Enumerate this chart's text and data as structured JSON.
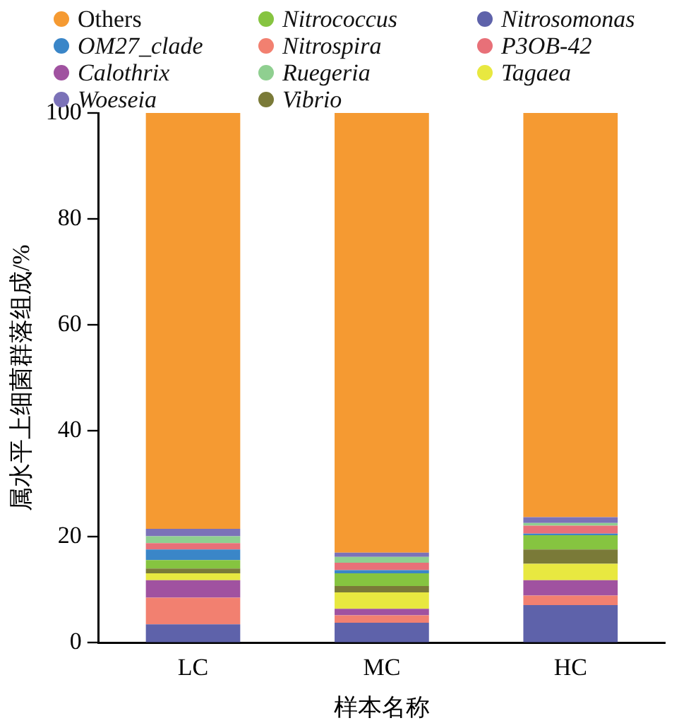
{
  "chart_data": {
    "type": "bar",
    "stacked": true,
    "xlabel": "样本名称",
    "ylabel": "属水平上细菌群落组成/%",
    "categories": [
      "LC",
      "MC",
      "HC"
    ],
    "ylim": [
      0,
      100
    ],
    "yticks": [
      0,
      20,
      40,
      60,
      80,
      100
    ],
    "grid": false,
    "legend": "top",
    "series": [
      {
        "name": "Nitrosomonas",
        "color": "#5e62aa",
        "values": [
          3.5,
          3.8,
          7.1
        ]
      },
      {
        "name": "Nitrospira",
        "color": "#f28070",
        "values": [
          5.0,
          1.4,
          1.8
        ]
      },
      {
        "name": "Calothrix",
        "color": "#a052a0",
        "values": [
          3.3,
          1.2,
          2.9
        ]
      },
      {
        "name": "Tagaea",
        "color": "#e8e840",
        "values": [
          1.3,
          3.1,
          3.1
        ]
      },
      {
        "name": "Vibrio",
        "color": "#7a7a38",
        "values": [
          0.9,
          1.2,
          2.7
        ]
      },
      {
        "name": "Nitrococcus",
        "color": "#86c440",
        "values": [
          1.6,
          2.4,
          2.7
        ]
      },
      {
        "name": "OM27_clade",
        "color": "#3a86c8",
        "values": [
          2.0,
          0.6,
          0.3
        ]
      },
      {
        "name": "P3OB-42",
        "color": "#e87078",
        "values": [
          1.2,
          1.4,
          1.5
        ]
      },
      {
        "name": "Ruegeria",
        "color": "#8fcf90",
        "values": [
          1.3,
          1.1,
          0.5
        ]
      },
      {
        "name": "Woeseia",
        "color": "#7b72b8",
        "values": [
          1.4,
          0.8,
          1.1
        ]
      },
      {
        "name": "Others",
        "color": "#f59a32",
        "values": [
          78.5,
          83.0,
          76.3
        ]
      }
    ]
  }
}
